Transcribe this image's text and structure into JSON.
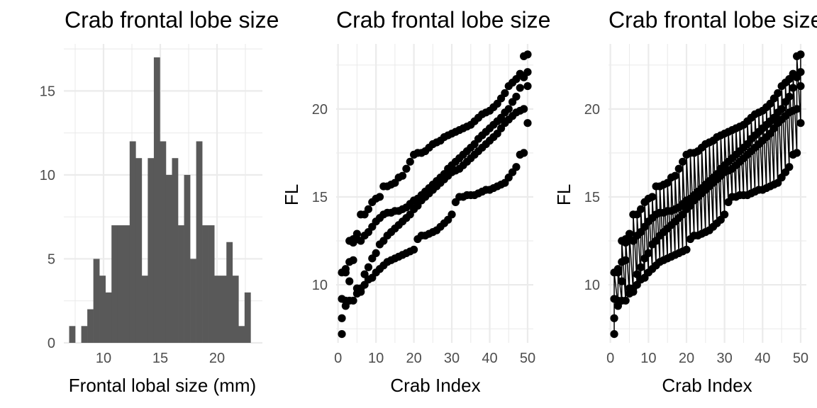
{
  "chart_data": [
    {
      "type": "histogram",
      "title": "Crab frontal lobe size",
      "xlabel": "Frontal lobal size (mm)",
      "ylabel": "",
      "xlim": [
        6.5,
        24
      ],
      "ylim": [
        0,
        17.8
      ],
      "x_ticks": [
        10,
        15,
        20
      ],
      "y_ticks": [
        0,
        5,
        10,
        15
      ],
      "bin_width": 0.533,
      "bin_start": 6.97,
      "counts": [
        1,
        0,
        1,
        2,
        5,
        4,
        3,
        7,
        7,
        7,
        12,
        11,
        4,
        11,
        17,
        12,
        10,
        11,
        7,
        10,
        5,
        12,
        7,
        7,
        4,
        4,
        6,
        4,
        1,
        3
      ],
      "bar_color": "#595959"
    },
    {
      "type": "scatter",
      "title": "Crab frontal lobe size",
      "xlabel": "Crab Index",
      "ylabel": "FL",
      "xlim": [
        -0.5,
        51.5
      ],
      "ylim": [
        6.7,
        23.7
      ],
      "x_ticks": [
        0,
        10,
        20,
        30,
        40,
        50
      ],
      "y_ticks": [
        10,
        15,
        20
      ],
      "x": [
        1,
        2,
        3,
        4,
        5,
        6,
        7,
        8,
        9,
        10,
        11,
        12,
        13,
        14,
        15,
        16,
        17,
        18,
        19,
        20,
        21,
        22,
        23,
        24,
        25,
        26,
        27,
        28,
        29,
        30,
        31,
        32,
        33,
        34,
        35,
        36,
        37,
        38,
        39,
        40,
        41,
        42,
        43,
        44,
        45,
        46,
        47,
        48,
        49,
        50
      ],
      "series": [
        {
          "values": [
            8.1,
            8.8,
            9.1,
            9.1,
            9.5,
            9.8,
            10.0,
            10.3,
            10.4,
            10.7,
            10.9,
            11.1,
            11.3,
            11.4,
            11.5,
            11.6,
            11.7,
            11.8,
            11.9,
            12.0,
            12.6,
            12.8,
            12.8,
            12.9,
            13.0,
            13.1,
            13.3,
            13.5,
            13.7,
            14.0,
            14.7,
            15.0,
            15.0,
            15.1,
            15.1,
            15.1,
            15.2,
            15.3,
            15.4,
            15.4,
            15.5,
            15.6,
            15.7,
            15.8,
            16.1,
            16.4,
            16.7,
            17.4,
            17.5,
            19.2
          ]
        },
        {
          "values": [
            7.2,
            9.1,
            10.2,
            11.4,
            9.8,
            9.6,
            10.6,
            11.0,
            11.5,
            11.8,
            12.3,
            12.5,
            12.8,
            13.0,
            13.2,
            13.4,
            13.6,
            13.8,
            14.0,
            14.3,
            14.5,
            14.8,
            15.0,
            15.2,
            15.4,
            15.6,
            15.8,
            16.0,
            16.2,
            16.4,
            16.5,
            16.6,
            16.8,
            17.0,
            17.2,
            17.4,
            17.6,
            17.8,
            18.0,
            18.2,
            18.4,
            18.6,
            18.9,
            19.2,
            19.4,
            19.6,
            19.8,
            19.9,
            20.0,
            21.3
          ]
        },
        {
          "values": [
            9.2,
            10.7,
            11.3,
            12.4,
            12.6,
            12.5,
            12.8,
            13.0,
            13.3,
            13.6,
            13.8,
            14.0,
            14.1,
            14.1,
            14.2,
            14.2,
            14.3,
            14.4,
            14.6,
            14.8,
            14.9,
            15.1,
            15.3,
            15.5,
            15.7,
            15.9,
            16.1,
            16.3,
            16.6,
            16.8,
            17.0,
            17.2,
            17.4,
            17.6,
            17.8,
            18.0,
            18.3,
            18.5,
            18.7,
            18.9,
            19.1,
            19.3,
            19.5,
            19.8,
            20.0,
            20.4,
            20.7,
            21.2,
            21.8,
            22.1
          ]
        },
        {
          "values": [
            10.7,
            10.9,
            12.5,
            12.6,
            12.9,
            14.0,
            14.0,
            14.3,
            14.7,
            14.9,
            15.0,
            15.6,
            15.6,
            15.7,
            15.8,
            16.1,
            16.2,
            16.6,
            17.0,
            17.4,
            17.5,
            17.5,
            17.6,
            17.8,
            18.0,
            18.1,
            18.2,
            18.4,
            18.5,
            18.6,
            18.7,
            18.8,
            18.9,
            19.0,
            19.1,
            19.3,
            19.5,
            19.7,
            19.8,
            19.9,
            20.1,
            20.3,
            20.6,
            20.9,
            21.3,
            21.5,
            21.7,
            22.0,
            23.0,
            23.1
          ]
        }
      ],
      "point_color": "#000000"
    },
    {
      "type": "scatter",
      "title": "Crab frontal lobe size",
      "xlabel": "Crab Index",
      "ylabel": "FL",
      "xlim": [
        -0.5,
        51.5
      ],
      "ylim": [
        6.7,
        23.7
      ],
      "x_ticks": [
        0,
        10,
        20,
        30,
        40,
        50
      ],
      "y_ticks": [
        10,
        15,
        20
      ],
      "connect_points_per_index": true,
      "same_data_as_panel": 2,
      "point_color": "#000000",
      "line_color": "#000000"
    }
  ]
}
